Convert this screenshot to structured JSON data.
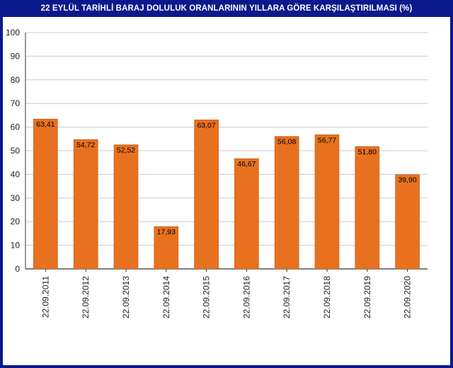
{
  "chart_data": {
    "type": "bar",
    "title": "22 EYLÜL TARİHLİ BARAJ DOLULUK ORANLARININ YILLARA GÖRE KARŞILAŞTIRILMASI (%)",
    "categories": [
      "22.09.2011",
      "22.09.2012",
      "22.09.2013",
      "22.09.2014",
      "22.09.2015",
      "22.09.2016",
      "22.09.2017",
      "22.09.2018",
      "22.09.2019",
      "22.09.2020"
    ],
    "values": [
      63.41,
      54.72,
      52.52,
      17.93,
      63.07,
      46.67,
      56.08,
      56.77,
      51.8,
      39.9
    ],
    "value_labels": [
      "63,41",
      "54,72",
      "52,52",
      "17,93",
      "63,07",
      "46,67",
      "56,08",
      "56,77",
      "51,80",
      "39,90"
    ],
    "ylim": [
      0,
      100
    ],
    "yticks": [
      0,
      10,
      20,
      30,
      40,
      50,
      60,
      70,
      80,
      90,
      100
    ],
    "xlabel": "",
    "ylabel": "",
    "grid": true,
    "legend": "none",
    "colors": {
      "bar": "#e8711f",
      "bar_edge": "#b85a17",
      "title_bg": "#0a1a8c",
      "title_text": "#ffffff",
      "grid": "#cccccc",
      "axis": "#333333"
    }
  }
}
